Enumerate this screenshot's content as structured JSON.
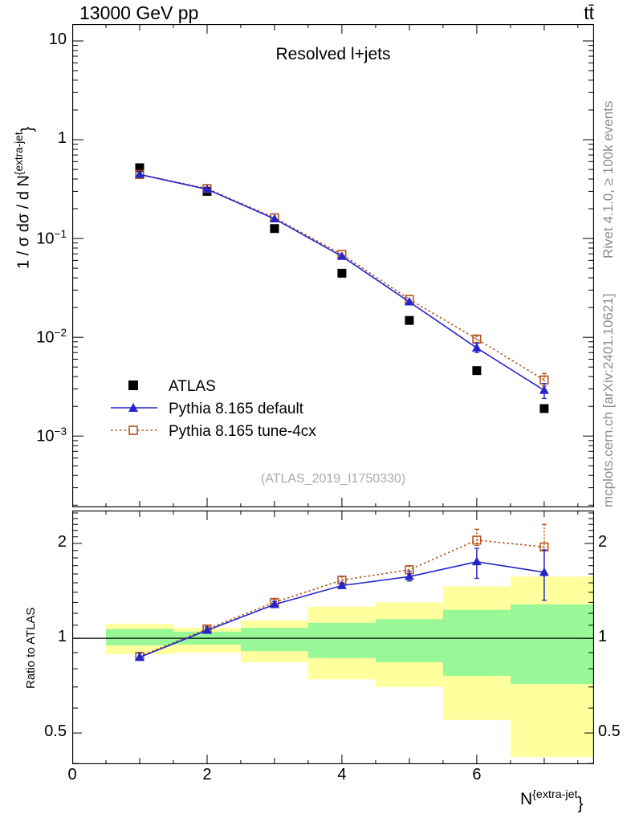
{
  "header": {
    "title_left": "13000 GeV pp",
    "title_right": "tt̄"
  },
  "right_margin": {
    "top_label": "Rivet 4.1.0, ≥ 100k events",
    "bottom_label": "mcplots.cern.ch [arXiv:2401.10621]"
  },
  "main_panel": {
    "subtitle": "Resolved l+jets",
    "watermark": "(ATLAS_2019_I1750330)",
    "ylabel": {
      "base": "1 / σ dσ / d N",
      "sup": "{extra-jet",
      "close": "}"
    }
  },
  "ratio_panel": {
    "ylabel": "Ratio to ATLAS"
  },
  "xaxis_label": {
    "base": "N",
    "sup": "{extra-jet",
    "close": "}"
  },
  "colors": {
    "atlas": "#000000",
    "pythia_default": "#2525cc",
    "pythia_tune": "#b4531c",
    "band_yellow": "#ffff9e",
    "band_green": "#98f898",
    "frame": "#000000",
    "gray_text": "#8c8c8c",
    "watermark": "#aaaaaa"
  },
  "chart_data": [
    {
      "type": "line",
      "panel": "main",
      "title": "Resolved l+jets",
      "xlabel": "N^{extra-jet}",
      "ylabel": "1 / σ dσ / d N^{extra-jet}",
      "yscale": "log",
      "xlim": [
        0,
        7.74
      ],
      "ylim": [
        0.00019,
        14.8
      ],
      "x": [
        1,
        2,
        3,
        4,
        5,
        6,
        7
      ],
      "xticks": [
        {
          "v": 0,
          "base": "0",
          "exp": ""
        },
        {
          "v": 2,
          "base": "2",
          "exp": ""
        },
        {
          "v": 4,
          "base": "4",
          "exp": ""
        },
        {
          "v": 6,
          "base": "6",
          "exp": ""
        }
      ],
      "yticks": [
        {
          "v": 10,
          "base": "10",
          "exp": ""
        },
        {
          "v": 1,
          "base": "1",
          "exp": ""
        },
        {
          "v": 0.1,
          "base": "10",
          "exp": "−1"
        },
        {
          "v": 0.01,
          "base": "10",
          "exp": "−2"
        },
        {
          "v": 0.001,
          "base": "10",
          "exp": "−3"
        }
      ],
      "series": [
        {
          "name": "ATLAS",
          "color": "#000000",
          "marker": "filled-square",
          "line": "none",
          "values": [
            0.52,
            0.3,
            0.126,
            0.0445,
            0.0148,
            0.0046,
            0.0019
          ]
        },
        {
          "name": "Pythia 8.165 default",
          "color": "#2525cc",
          "marker": "filled-triangle",
          "line": "solid",
          "values": [
            0.445,
            0.315,
            0.158,
            0.066,
            0.0228,
            0.0078,
            0.0029
          ],
          "err_lo": [
            null,
            null,
            null,
            null,
            null,
            0.007,
            0.0024
          ],
          "err_hi": [
            null,
            null,
            null,
            null,
            null,
            0.0087,
            0.0034
          ]
        },
        {
          "name": "Pythia 8.165 tune-4cx",
          "color": "#b4531c",
          "marker": "open-square",
          "line": "dotted",
          "values": [
            0.445,
            0.32,
            0.162,
            0.069,
            0.0242,
            0.0096,
            0.0037
          ],
          "err_lo": [
            null,
            null,
            null,
            null,
            null,
            0.0089,
            0.0032
          ],
          "err_hi": [
            null,
            null,
            null,
            null,
            null,
            0.0104,
            0.0043
          ]
        }
      ]
    },
    {
      "type": "line",
      "panel": "ratio",
      "ylabel": "Ratio to ATLAS",
      "yscale": "log",
      "xlim": [
        0,
        7.74
      ],
      "ylim": [
        0.398,
        2.545
      ],
      "x": [
        1,
        2,
        3,
        4,
        5,
        6,
        7
      ],
      "yticks": [
        {
          "v": 2,
          "base": "2",
          "exp": ""
        },
        {
          "v": 1,
          "base": "1",
          "exp": ""
        },
        {
          "v": 0.5,
          "base": "0.5",
          "exp": ""
        }
      ],
      "reference_line": 1,
      "series": [
        {
          "name": "Pythia 8.165 default",
          "color": "#2525cc",
          "marker": "filled-triangle",
          "line": "solid",
          "values": [
            0.87,
            1.06,
            1.28,
            1.47,
            1.57,
            1.75,
            1.62
          ],
          "err_lo": [
            0.85,
            1.04,
            1.26,
            1.44,
            1.52,
            1.55,
            1.32
          ],
          "err_hi": [
            0.9,
            1.08,
            1.31,
            1.5,
            1.63,
            1.93,
            1.91
          ]
        },
        {
          "name": "Pythia 8.165 tune-4cx",
          "color": "#b4531c",
          "marker": "open-square",
          "line": "dotted",
          "values": [
            0.875,
            1.07,
            1.3,
            1.53,
            1.65,
            2.05,
            1.95
          ],
          "err_lo": [
            0.855,
            1.05,
            1.27,
            1.5,
            1.6,
            1.97,
            1.58
          ],
          "err_hi": [
            0.895,
            1.09,
            1.33,
            1.57,
            1.7,
            2.22,
            2.3
          ]
        }
      ],
      "bands": {
        "bins": [
          [
            0.5,
            1.5
          ],
          [
            1.5,
            2.5
          ],
          [
            2.5,
            3.5
          ],
          [
            3.5,
            4.5
          ],
          [
            4.5,
            5.5
          ],
          [
            5.5,
            6.5
          ],
          [
            6.5,
            7.74
          ]
        ],
        "yellow": [
          [
            0.89,
            1.11
          ],
          [
            0.9,
            1.08
          ],
          [
            0.84,
            1.14
          ],
          [
            0.74,
            1.26
          ],
          [
            0.7,
            1.3
          ],
          [
            0.55,
            1.46
          ],
          [
            0.42,
            1.57
          ]
        ],
        "green": [
          [
            0.95,
            1.07
          ],
          [
            0.955,
            1.05
          ],
          [
            0.91,
            1.08
          ],
          [
            0.865,
            1.12
          ],
          [
            0.84,
            1.15
          ],
          [
            0.76,
            1.23
          ],
          [
            0.715,
            1.28
          ]
        ]
      }
    }
  ]
}
